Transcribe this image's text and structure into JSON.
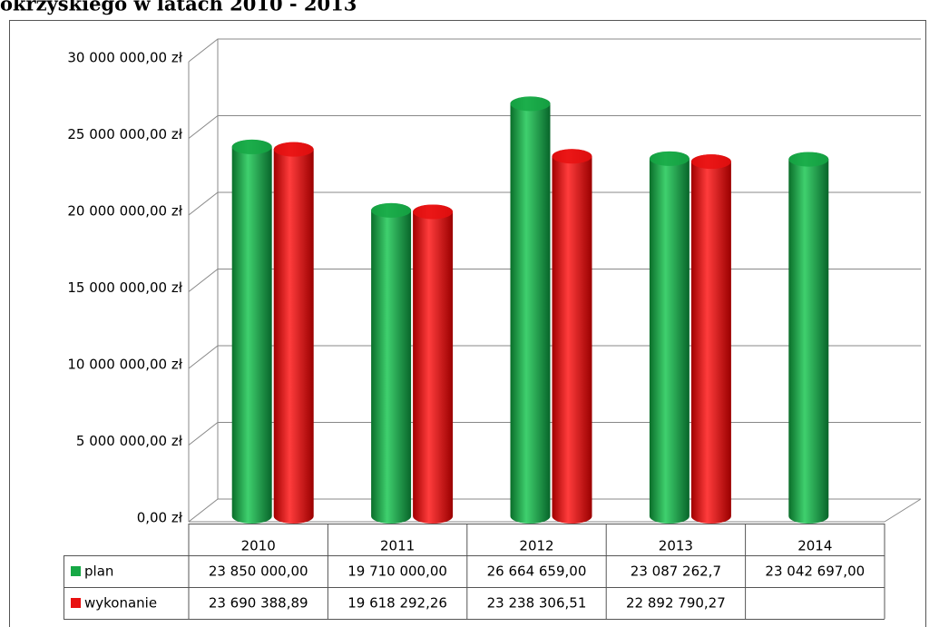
{
  "chart_data": {
    "type": "bar",
    "title": "okrzyskiego w latach 2010 - 2013",
    "categories": [
      "2010",
      "2011",
      "2012",
      "2013",
      "2014"
    ],
    "series": [
      {
        "name": "plan",
        "color": "#16a845",
        "values": [
          23850000,
          19710000,
          26664659,
          23087262.7,
          23042697
        ],
        "value_labels": [
          "23 850 000,00",
          "19 710 000,00",
          "26 664 659,00",
          "23 087 262,7",
          "23 042 697,00"
        ]
      },
      {
        "name": "wykonanie",
        "color": "#e81010",
        "values": [
          23690388.89,
          19618292.26,
          23238306.51,
          22892790.27,
          null
        ],
        "value_labels": [
          "23 690 388,89",
          "19 618 292,26",
          "23 238 306,51",
          "22 892 790,27",
          null
        ]
      }
    ],
    "ylim": [
      0,
      30000000
    ],
    "yticks": [
      {
        "value": 0,
        "label": "0,00 zł"
      },
      {
        "value": 5000000,
        "label": "5 000 000,00 zł"
      },
      {
        "value": 10000000,
        "label": "10 000 000,00 zł"
      },
      {
        "value": 15000000,
        "label": "15 000 000,00 zł"
      },
      {
        "value": 20000000,
        "label": "20 000 000,00 zł"
      },
      {
        "value": 25000000,
        "label": "25 000 000,00 zł"
      },
      {
        "value": 30000000,
        "label": "30 000 000,00 zł"
      }
    ],
    "grid": true
  }
}
